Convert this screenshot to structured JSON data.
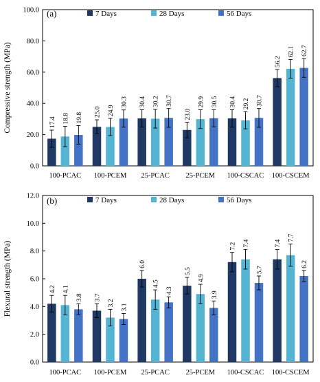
{
  "chart_data": [
    {
      "type": "bar",
      "panel_label": "(a)",
      "ylabel": "Compressive strength (MPa)",
      "ylim": [
        0,
        100
      ],
      "yticks": [
        "0.0",
        "20.0",
        "40.0",
        "60.0",
        "80.0",
        "100.0"
      ],
      "grid": false,
      "legend_position": "top",
      "categories": [
        "100-PCAC",
        "100-PCEM",
        "25-PCAC",
        "25-PCEM",
        "100-CSCAC",
        "100-CSCEM"
      ],
      "series": [
        {
          "name": "7 Days",
          "color": "#1f3864",
          "values": [
            17.4,
            25.0,
            30.4,
            23.0,
            30.4,
            56.2
          ],
          "labels": [
            "17.4",
            "25.0",
            "30.4",
            "23.0",
            "30.4",
            "56.2"
          ],
          "errors": [
            5.5,
            4.5,
            5.5,
            5.0,
            5.5,
            5.5
          ]
        },
        {
          "name": "28 Days",
          "color": "#56b4d3",
          "values": [
            18.8,
            24.9,
            30.2,
            29.9,
            29.2,
            62.1
          ],
          "labels": [
            "18.8",
            "24.9",
            "30.2",
            "29.9",
            "29.2",
            "62.1"
          ],
          "errors": [
            6.5,
            5.5,
            6.0,
            6.0,
            5.5,
            6.0
          ]
        },
        {
          "name": "56 Days",
          "color": "#4472c4",
          "values": [
            19.8,
            30.3,
            30.7,
            30.5,
            30.7,
            62.7
          ],
          "labels": [
            "19.8",
            "30.3",
            "30.7",
            "30.5",
            "30.7",
            "62.7"
          ],
          "errors": [
            6.0,
            5.5,
            6.0,
            5.5,
            6.0,
            6.0
          ]
        }
      ]
    },
    {
      "type": "bar",
      "panel_label": "(b)",
      "ylabel": "Flexural strength (MPa)",
      "ylim": [
        0,
        12
      ],
      "yticks": [
        "0.0",
        "2.0",
        "4.0",
        "6.0",
        "8.0",
        "10.0",
        "12.0"
      ],
      "grid": false,
      "legend_position": "top",
      "categories": [
        "100-PCAC",
        "100-PCEM",
        "25-PCAC",
        "25-PCEM",
        "100-CSCAC",
        "100-CSCEM"
      ],
      "series": [
        {
          "name": "7 Days",
          "color": "#1f3864",
          "values": [
            4.2,
            3.7,
            6.0,
            5.5,
            7.2,
            7.4
          ],
          "labels": [
            "4.2",
            "3.7",
            "6.0",
            "5.5",
            "7.2",
            "7.4"
          ],
          "errors": [
            0.6,
            0.5,
            0.6,
            0.6,
            0.7,
            0.7
          ]
        },
        {
          "name": "28 Days",
          "color": "#56b4d3",
          "values": [
            4.1,
            3.2,
            4.5,
            4.9,
            7.4,
            7.7
          ],
          "labels": [
            "4.1",
            "3.2",
            "4.5",
            "4.9",
            "7.4",
            "7.7"
          ],
          "errors": [
            0.7,
            0.6,
            0.7,
            0.7,
            0.7,
            0.8
          ]
        },
        {
          "name": "56 Days",
          "color": "#4472c4",
          "values": [
            3.8,
            3.1,
            4.3,
            3.9,
            5.7,
            6.2
          ],
          "labels": [
            "3.8",
            "3.1",
            "4.3",
            "3.9",
            "5.7",
            "6.2"
          ],
          "errors": [
            0.4,
            0.4,
            0.4,
            0.5,
            0.5,
            0.4
          ]
        }
      ]
    }
  ]
}
